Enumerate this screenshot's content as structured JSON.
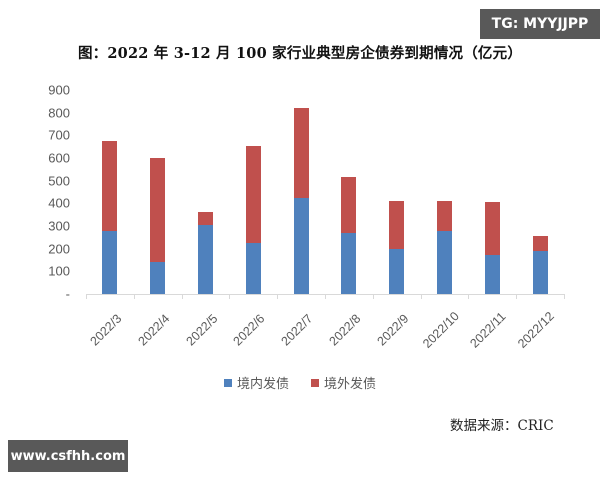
{
  "title": "图：2022 年 3-12 月 100 家行业典型房企债券到期情况（亿元）",
  "watermarks": {
    "top_right": "TG: MYYJJPP",
    "bottom_left": "www.csfhh.com"
  },
  "source": "数据来源：CRIC",
  "colors": {
    "domestic": "#4f81bd",
    "overseas": "#c0504d",
    "watermark_bg": "#595959"
  },
  "chart_data": {
    "type": "bar",
    "stacked": true,
    "title": "图：2022 年 3-12 月 100 家行业典型房企债券到期情况（亿元）",
    "xlabel": "",
    "ylabel": "亿元",
    "ylim": [
      0,
      900
    ],
    "yticks": [
      "-",
      "100",
      "200",
      "300",
      "400",
      "500",
      "600",
      "700",
      "800",
      "900"
    ],
    "grid": false,
    "legend_position": "bottom",
    "categories": [
      "2022/3",
      "2022/4",
      "2022/5",
      "2022/6",
      "2022/7",
      "2022/8",
      "2022/9",
      "2022/10",
      "2022/11",
      "2022/12"
    ],
    "series": [
      {
        "name": "境内发债",
        "color": "#4f81bd",
        "values": [
          280,
          140,
          305,
          225,
          425,
          270,
          200,
          280,
          170,
          190
        ]
      },
      {
        "name": "境外发债",
        "color": "#c0504d",
        "values": [
          395,
          460,
          55,
          430,
          395,
          245,
          210,
          130,
          235,
          65
        ]
      }
    ],
    "totals": [
      675,
      600,
      360,
      655,
      820,
      515,
      410,
      410,
      405,
      255
    ],
    "source": "数据来源：CRIC"
  }
}
